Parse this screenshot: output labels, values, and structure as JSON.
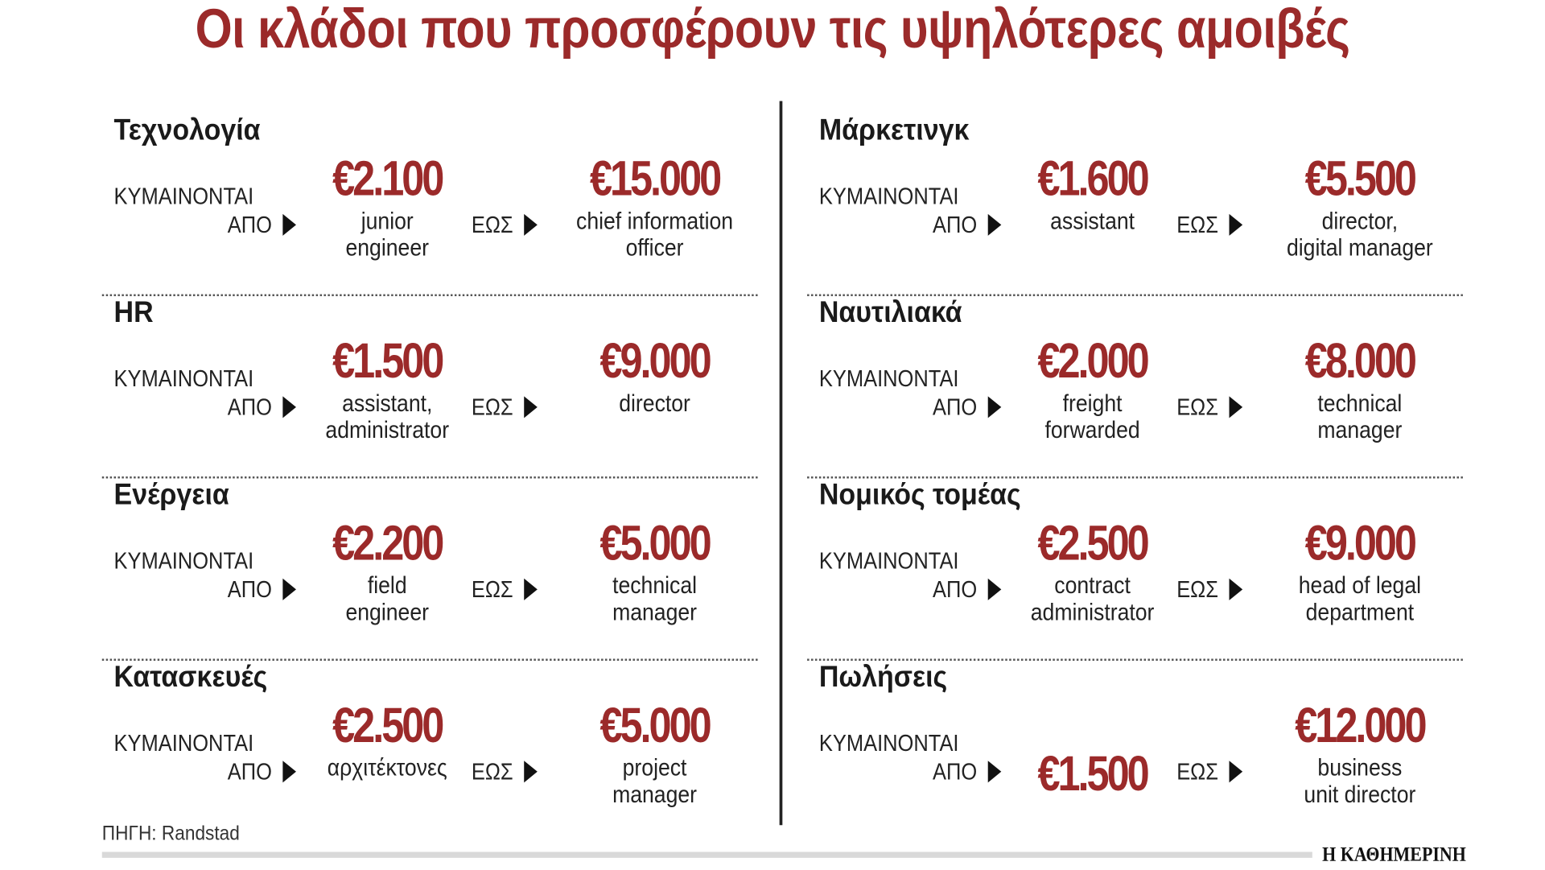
{
  "title": "Οι κλάδοι που προσφέρουν τις υψηλότερες αμοιβές",
  "labels": {
    "range_from_line1": "ΚΥΜΑΙΝΟΝΤΑΙ",
    "range_from_line2": "ΑΠΟ",
    "range_to": "ΕΩΣ"
  },
  "colors": {
    "accent": "#9b2a2a",
    "text": "#1a1a1a"
  },
  "sectors": [
    {
      "name": "Τεχνολογία",
      "from": "€2.100",
      "from_role": "junior\nengineer",
      "to": "€15.000",
      "to_role": "chief information\nofficer"
    },
    {
      "name": "HR",
      "from": "€1.500",
      "from_role": "assistant,\nadministrator",
      "to": "€9.000",
      "to_role": "director"
    },
    {
      "name": "Ενέργεια",
      "from": "€2.200",
      "from_role": "field\nengineer",
      "to": "€5.000",
      "to_role": "technical\nmanager"
    },
    {
      "name": "Κατασκευές",
      "from": "€2.500",
      "from_role": "αρχιτέκτονες",
      "to": "€5.000",
      "to_role": "project\nmanager"
    },
    {
      "name": "Μάρκετινγκ",
      "from": "€1.600",
      "from_role": "assistant",
      "to": "€5.500",
      "to_role": "director,\ndigital manager"
    },
    {
      "name": "Ναυτιλιακά",
      "from": "€2.000",
      "from_role": "freight\nforwarded",
      "to": "€8.000",
      "to_role": "technical\nmanager"
    },
    {
      "name": "Νομικός τομέας",
      "from": "€2.500",
      "from_role": "contract\nadministrator",
      "to": "€9.000",
      "to_role": "head of legal\ndepartment"
    },
    {
      "name": "Πωλήσεις",
      "from": "€1.500",
      "from_role": "",
      "to": "€12.000",
      "to_role": "business\nunit director"
    }
  ],
  "source": "ΠΗΓΗ: Randstad",
  "logo": "Η ΚΑΘΗΜΕΡΙΝΗ"
}
